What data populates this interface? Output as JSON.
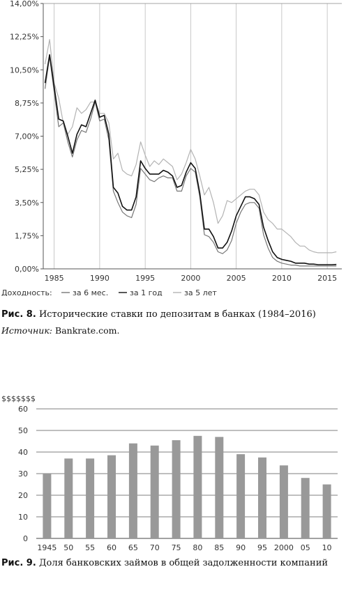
{
  "chart_data": [
    {
      "type": "line",
      "caption_label": "Рис. 8.",
      "caption_text": "Исторические ставки по депозитам в банках (1984–2016)",
      "source_label": "Источник:",
      "source_text": "Bankrate.com.",
      "legend_title": "Доходность:",
      "legend_placement": "bottom-left",
      "ylim": [
        0,
        14
      ],
      "xlim": [
        1983.8,
        2016.6
      ],
      "grid": "x-major",
      "y_ticks": [
        "0,00%",
        "1,75%",
        "3,50%",
        "5,25%",
        "7,00%",
        "8,75%",
        "10,50%",
        "12,25%",
        "14,00%"
      ],
      "x_ticks": [
        "1985",
        "1990",
        "1995",
        "2000",
        "2005",
        "2010",
        "2015"
      ],
      "x": [
        1984,
        1984.5,
        1985,
        1985.5,
        1986,
        1986.5,
        1987,
        1987.5,
        1988,
        1988.5,
        1989,
        1989.5,
        1990,
        1990.5,
        1991,
        1991.5,
        1992,
        1992.5,
        1993,
        1993.5,
        1994,
        1994.5,
        1995,
        1995.5,
        1996,
        1996.5,
        1997,
        1997.5,
        1998,
        1998.5,
        1999,
        1999.5,
        2000,
        2000.5,
        2001,
        2001.5,
        2002,
        2002.5,
        2003,
        2003.5,
        2004,
        2004.5,
        2005,
        2005.5,
        2006,
        2006.5,
        2007,
        2007.5,
        2008,
        2008.5,
        2009,
        2009.5,
        2010,
        2010.5,
        2011,
        2011.5,
        2012,
        2012.5,
        2013,
        2013.5,
        2014,
        2014.5,
        2015,
        2015.5,
        2016
      ],
      "series": [
        {
          "name": "за 6 мес.",
          "color": "#777777",
          "values": [
            9.5,
            11.2,
            9.3,
            7.5,
            7.7,
            6.7,
            5.9,
            6.8,
            7.3,
            7.2,
            7.9,
            8.8,
            7.8,
            7.9,
            6.8,
            4.1,
            3.5,
            3.0,
            2.8,
            2.7,
            3.4,
            5.3,
            5.0,
            4.7,
            4.6,
            4.8,
            4.9,
            4.8,
            4.8,
            4.1,
            4.1,
            4.9,
            5.3,
            5.1,
            3.8,
            1.8,
            1.7,
            1.4,
            0.9,
            0.8,
            1.0,
            1.5,
            2.4,
            3.0,
            3.4,
            3.5,
            3.5,
            3.2,
            1.8,
            1.1,
            0.6,
            0.4,
            0.3,
            0.25,
            0.2,
            0.2,
            0.15,
            0.15,
            0.15,
            0.15,
            0.15,
            0.15,
            0.15,
            0.15,
            0.15
          ]
        },
        {
          "name": "за 1 год",
          "color": "#111111",
          "values": [
            9.8,
            11.3,
            9.6,
            7.9,
            7.8,
            7.0,
            6.1,
            7.1,
            7.6,
            7.5,
            8.2,
            8.9,
            8.0,
            8.1,
            7.1,
            4.3,
            4.0,
            3.3,
            3.1,
            3.1,
            3.8,
            5.7,
            5.3,
            5.0,
            5.0,
            5.0,
            5.2,
            5.1,
            4.9,
            4.3,
            4.4,
            5.1,
            5.6,
            5.3,
            4.0,
            2.1,
            2.1,
            1.7,
            1.1,
            1.1,
            1.4,
            2.0,
            2.8,
            3.3,
            3.8,
            3.8,
            3.7,
            3.4,
            2.2,
            1.5,
            0.9,
            0.6,
            0.5,
            0.45,
            0.4,
            0.3,
            0.3,
            0.3,
            0.25,
            0.25,
            0.22,
            0.22,
            0.22,
            0.22,
            0.23
          ]
        },
        {
          "name": "за 5 лет",
          "color": "#b3b3b3",
          "values": [
            10.8,
            12.1,
            9.8,
            9.0,
            7.7,
            7.1,
            7.5,
            8.5,
            8.2,
            8.4,
            8.8,
            8.8,
            8.2,
            8.2,
            7.7,
            5.8,
            6.1,
            5.2,
            5.0,
            4.9,
            5.5,
            6.7,
            6.0,
            5.4,
            5.7,
            5.5,
            5.8,
            5.6,
            5.4,
            4.7,
            5.0,
            5.6,
            6.3,
            5.8,
            4.9,
            3.9,
            4.3,
            3.5,
            2.4,
            2.8,
            3.6,
            3.5,
            3.7,
            3.9,
            4.1,
            4.2,
            4.2,
            3.9,
            3.0,
            2.6,
            2.4,
            2.1,
            2.1,
            1.9,
            1.7,
            1.4,
            1.2,
            1.2,
            1.0,
            0.9,
            0.85,
            0.85,
            0.85,
            0.85,
            0.9
          ]
        }
      ]
    },
    {
      "type": "bar",
      "caption_label": "Рис. 9.",
      "caption_text": "Доля банковских займов в общей задолженности компаний",
      "corner_label": "$$$$$$$",
      "ylim": [
        0,
        60
      ],
      "y_ticks": [
        "0",
        "10",
        "20",
        "30",
        "40",
        "50",
        "60"
      ],
      "grid": "y-major",
      "bar_color": "#999999",
      "categories": [
        "1945",
        "50",
        "55",
        "60",
        "65",
        "70",
        "75",
        "80",
        "85",
        "90",
        "95",
        "2000",
        "05",
        "10"
      ],
      "values": [
        30,
        37,
        37,
        38.5,
        44,
        43,
        45.5,
        47.5,
        47,
        39,
        37.5,
        33.8,
        28,
        25
      ]
    }
  ]
}
